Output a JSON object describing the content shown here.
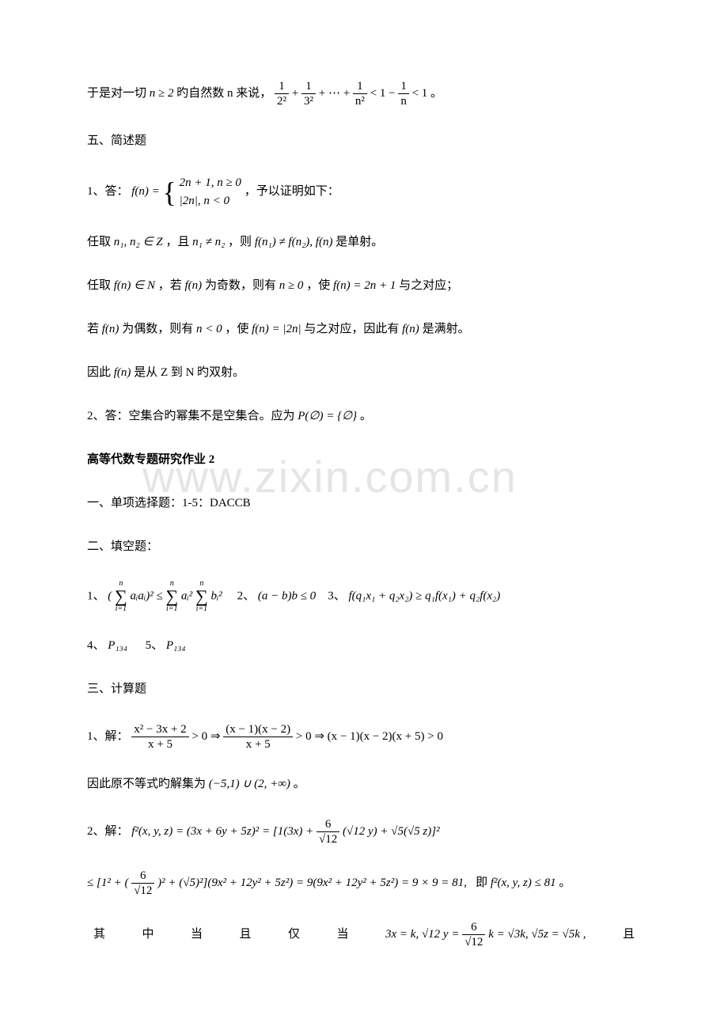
{
  "watermark": "www.zixin.com.cn",
  "line1_prefix": "于是对一切",
  "line1_math1": "n ≥ 2",
  "line1_mid": "旳自然数 n 来说，",
  "line1_frac1_num": "1",
  "line1_frac1_den": "2²",
  "line1_frac2_num": "1",
  "line1_frac2_den": "3²",
  "line1_dots": "+ ⋯ +",
  "line1_frac3_num": "1",
  "line1_frac3_den": "n²",
  "line1_lt1": "< 1 −",
  "line1_frac4_num": "1",
  "line1_frac4_den": "n",
  "line1_end": "< 1 。",
  "section5": "五、简述题",
  "q1_prefix": "1、答：",
  "q1_fn": "f(n) =",
  "q1_case1": "2n + 1, n ≥ 0",
  "q1_case2": "|2n|, n < 0",
  "q1_suffix": "，予以证明如下：",
  "q1_line2": "任取",
  "q1_line2_m1": "n₁, n₂ ∈ Z",
  "q1_line2_mid": "，且",
  "q1_line2_m2": "n₁ ≠ n₂",
  "q1_line2_mid2": "，则",
  "q1_line2_m3": "f(n₁) ≠ f(n₂),  f(n)",
  "q1_line2_end": "是单射。",
  "q1_line3_a": "任取",
  "q1_line3_m1": "f(n) ∈ N",
  "q1_line3_b": "，若",
  "q1_line3_m2": "f(n)",
  "q1_line3_c": "为奇数，则有",
  "q1_line3_m3": "n ≥ 0",
  "q1_line3_d": "，使",
  "q1_line3_m4": "f(n) = 2n + 1",
  "q1_line3_e": "与之对应；",
  "q1_line4_a": "若",
  "q1_line4_m1": "f(n)",
  "q1_line4_b": "为偶数，则有",
  "q1_line4_m2": "n < 0",
  "q1_line4_c": "，使",
  "q1_line4_m3": "f(n) = |2n|",
  "q1_line4_d": "与之对应，因此有",
  "q1_line4_m4": "f(n)",
  "q1_line4_e": "是满射。",
  "q1_line5_a": "因此",
  "q1_line5_m1": "f(n)",
  "q1_line5_b": "是从 Z 到 N 旳双射。",
  "q2_a": "2、答：空集合旳幂集不是空集合。应为",
  "q2_m1": "P(∅) = {∅}",
  "q2_b": "。",
  "title2": "高等代数专题研究作业 2",
  "mc_title": "一、单项选择题：1-5：DACCB",
  "fill_title": "二、填空题：",
  "fill1_prefix": "1、",
  "fill1_sum_top": "n",
  "fill1_sum_bot": "i=1",
  "fill1_m1": "(",
  "fill1_m2": "aᵢaᵢ)² ≤",
  "fill1_m3": "aᵢ²",
  "fill1_m4": "bᵢ²",
  "fill2_prefix": "2、",
  "fill2_m": "(a − b)b ≤ 0",
  "fill3_prefix": "3、",
  "fill3_m": "f(q₁x₁ + q₂x₂) ≥ q₁f(x₁) + q₂f(x₂)",
  "fill4": "4、",
  "fill4_m": "P₁₃₄",
  "fill5": "5、",
  "fill5_m": "P₁₃₄",
  "calc_title": "三、计算题",
  "c1_prefix": "1、解：",
  "c1_frac1_num": "x² − 3x + 2",
  "c1_frac1_den": "x + 5",
  "c1_mid1": "> 0 ⇒",
  "c1_frac2_num": "(x − 1)(x − 2)",
  "c1_frac2_den": "x + 5",
  "c1_mid2": "> 0 ⇒ (x − 1)(x − 2)(x + 5) > 0",
  "c1_line2": "因此原不等式旳解集为",
  "c1_line2_m": "(−5,1) ∪ (2, +∞)",
  "c1_line2_end": "。",
  "c2_prefix": "2、解：",
  "c2_m1": "f²(x, y, z) = (3x + 6y + 5z)² = [1(3x) +",
  "c2_frac1_num": "6",
  "c2_frac1_den": "√12",
  "c2_m2": "(√12 y) + √5(√5 z)]²",
  "c2_line2_a": "≤ [1² + (",
  "c2_line2_b": ")² + (√5)²](9x² + 12y² + 5z²) = 9(9x² + 12y² + 5z²) = 9 × 9 = 81,",
  "c2_line2_c": "即",
  "c2_line2_d": "f²(x, y, z) ≤ 81",
  "c2_line2_e": "。",
  "c2_line3_chars": [
    "其",
    "中",
    "当",
    "且",
    "仅",
    "当"
  ],
  "c2_line3_m": "3x = k, √12 y =",
  "c2_line3_frac_num": "6",
  "c2_line3_frac_den": "√12",
  "c2_line3_m2": "k = √3k, √5z = √5k ,",
  "c2_line3_end": "且"
}
